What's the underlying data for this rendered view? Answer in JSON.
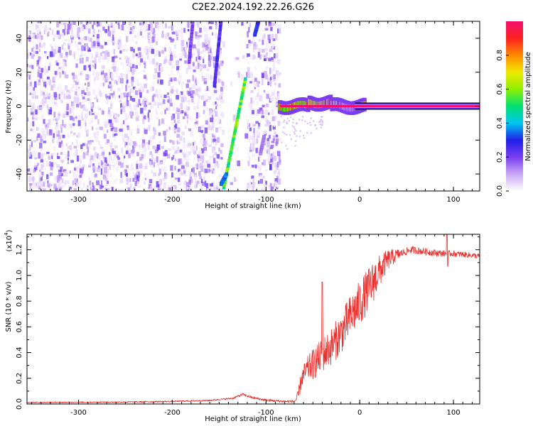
{
  "title": "C2E2.2024.192.22.26.G26",
  "chart_data": [
    {
      "type": "heatmap",
      "xlabel": "Height of straight line (km)",
      "ylabel": "Frequency (Hz)",
      "xlim": [
        -355,
        128
      ],
      "ylim": [
        -50,
        50
      ],
      "xticks": [
        -300,
        -200,
        -100,
        0,
        100
      ],
      "yticks": [
        -40,
        -20,
        0,
        20,
        40
      ],
      "colorbar": {
        "label": "Normalized spectral amplitude",
        "range": [
          0.0,
          1.0
        ],
        "ticks": [
          0.0,
          0.2,
          0.4,
          0.6,
          0.8
        ],
        "colormap": [
          "#ffffff",
          "#c9a8f5",
          "#7a3df0",
          "#1f1fe8",
          "#00c8f0",
          "#00e070",
          "#8ef000",
          "#f0e800",
          "#ff8a00",
          "#ff2020",
          "#f01070"
        ]
      },
      "features": {
        "noise_region_x": [
          -355,
          -85
        ],
        "clear_gap_x": [
          -145,
          -120
        ],
        "dc_line": {
          "x": [
            -85,
            128
          ],
          "frequency": 0,
          "amplitude": 1.0
        },
        "streaks": [
          {
            "x": [
              -145,
              -122
            ],
            "frequency": [
              -48,
              16
            ],
            "amplitude": 0.55
          },
          {
            "x": [
              -148,
              -142
            ],
            "frequency": [
              -46,
              -40
            ],
            "amplitude": 0.35
          },
          {
            "x": [
              -155,
              -148
            ],
            "frequency": [
              12,
              50
            ],
            "amplitude": 0.25
          },
          {
            "x": [
              -112,
              -108
            ],
            "frequency": [
              42,
              50
            ],
            "amplitude": 0.3
          },
          {
            "x": [
              -182,
              -178
            ],
            "frequency": [
              26,
              50
            ],
            "amplitude": 0.2
          },
          {
            "x": [
              -106,
              -102
            ],
            "frequency": [
              -28,
              -18
            ],
            "amplitude": 0.15
          }
        ]
      }
    },
    {
      "type": "line",
      "xlabel": "Height of straight line (km)",
      "ylabel": "SNR (10 * v/v)",
      "y_multiplier": "(x10",
      "y_multiplier_exp": "4",
      "y_multiplier_close": ")",
      "xlim": [
        -355,
        128
      ],
      "ylim": [
        0,
        1.32
      ],
      "xticks": [
        -300,
        -200,
        -100,
        0,
        100
      ],
      "yticks": [
        0.0,
        0.2,
        0.4,
        0.6,
        0.8,
        1.0,
        1.2
      ],
      "color": "#e8302e",
      "anchors": [
        [
          -355,
          0.012
        ],
        [
          -250,
          0.015
        ],
        [
          -200,
          0.02
        ],
        [
          -160,
          0.028
        ],
        [
          -135,
          0.045
        ],
        [
          -125,
          0.075
        ],
        [
          -115,
          0.05
        ],
        [
          -100,
          0.03
        ],
        [
          -80,
          0.02
        ],
        [
          -70,
          0.02
        ],
        [
          -66,
          0.05
        ],
        [
          -62,
          0.2
        ],
        [
          -55,
          0.28
        ],
        [
          -48,
          0.32
        ],
        [
          -40,
          0.38
        ],
        [
          -30,
          0.45
        ],
        [
          -20,
          0.55
        ],
        [
          -10,
          0.68
        ],
        [
          0,
          0.78
        ],
        [
          10,
          0.9
        ],
        [
          20,
          1.02
        ],
        [
          30,
          1.12
        ],
        [
          40,
          1.16
        ],
        [
          55,
          1.2
        ],
        [
          75,
          1.18
        ],
        [
          90,
          1.17
        ],
        [
          100,
          1.17
        ],
        [
          115,
          1.16
        ],
        [
          128,
          1.15
        ]
      ],
      "noise": [
        [
          -355,
          0.004
        ],
        [
          -150,
          0.006
        ],
        [
          -120,
          0.01
        ],
        [
          -70,
          0.01
        ],
        [
          -65,
          0.06
        ],
        [
          -50,
          0.12
        ],
        [
          -20,
          0.16
        ],
        [
          0,
          0.18
        ],
        [
          15,
          0.16
        ],
        [
          30,
          0.08
        ],
        [
          45,
          0.03
        ],
        [
          128,
          0.02
        ]
      ],
      "spikes": [
        {
          "x": 93,
          "y": 1.32
        },
        {
          "x": 94,
          "y": 1.07
        },
        {
          "x": -40,
          "y": 0.95
        }
      ]
    }
  ]
}
